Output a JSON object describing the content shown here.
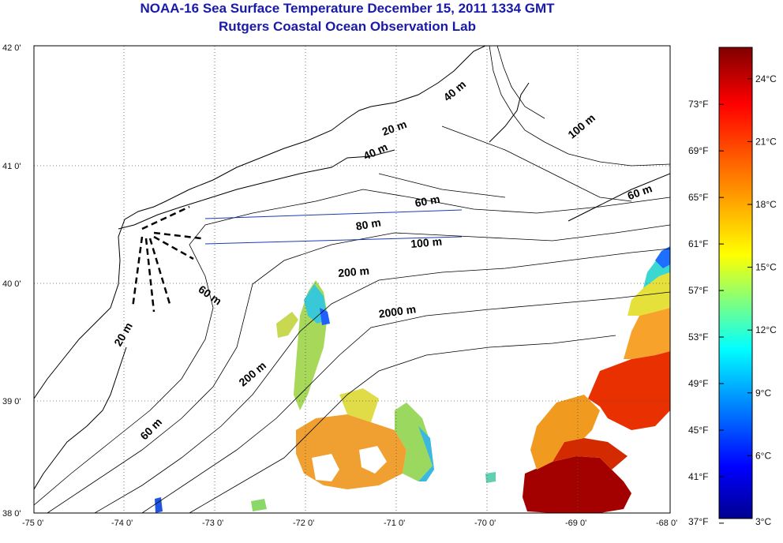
{
  "header": {
    "title": "NOAA-16 Sea Surface Temperature December 15, 2011 1334 GMT",
    "subtitle": "Rutgers Coastal Ocean Observation Lab"
  },
  "map": {
    "lon_range": [
      -75,
      -68
    ],
    "lat_range": [
      38,
      42
    ],
    "lon_ticks": [
      "-75 0'",
      "-74 0'",
      "-73 0'",
      "-72 0'",
      "-71 0'",
      "-70 0'",
      "-69 0'",
      "-68 0'"
    ],
    "lat_ticks": [
      "38 0'",
      "39 0'",
      "40 0'",
      "41 0'",
      "42 0'"
    ],
    "grid": "dotted",
    "land_color": "#ffffff",
    "no_data_color": "#ffffff",
    "coastline_color": "#000000",
    "transect_color": "#1a3cb0",
    "contour_labels": [
      {
        "text": "20 m",
        "lon": -71.15,
        "lat": 41.23
      },
      {
        "text": "40 m",
        "lon": -70.45,
        "lat": 41.52
      },
      {
        "text": "100 m",
        "lon": -69.08,
        "lat": 41.2
      },
      {
        "text": "40 m",
        "lon": -71.35,
        "lat": 41.02
      },
      {
        "text": "60 m",
        "lon": -70.8,
        "lat": 40.62
      },
      {
        "text": "60 m",
        "lon": -68.45,
        "lat": 40.68
      },
      {
        "text": "80 m",
        "lon": -71.45,
        "lat": 40.42
      },
      {
        "text": "100 m",
        "lon": -70.85,
        "lat": 40.27
      },
      {
        "text": "200 m",
        "lon": -71.65,
        "lat": 40.02
      },
      {
        "text": "2000 m",
        "lon": -71.2,
        "lat": 39.67
      },
      {
        "text": "60 m",
        "lon": -73.2,
        "lat": 39.9
      },
      {
        "text": "20 m",
        "lon": -74.05,
        "lat": 39.42
      },
      {
        "text": "200 m",
        "lon": -72.7,
        "lat": 39.08
      },
      {
        "text": "60 m",
        "lon": -73.78,
        "lat": 38.62
      }
    ]
  },
  "colorbar": {
    "range_c": [
      3,
      25.5
    ],
    "celsius_ticks": [
      "24°C",
      "21°C",
      "18°C",
      "15°C",
      "12°C",
      "9°C",
      "6°C",
      "3°C"
    ],
    "fahrenheit_ticks": [
      "73°F",
      "69°F",
      "65°F",
      "61°F",
      "57°F",
      "53°F",
      "49°F",
      "45°F",
      "41°F",
      "37°F"
    ],
    "colormap": [
      "#00008f",
      "#0000ff",
      "#00ffff",
      "#ffff00",
      "#ff7f00",
      "#ff0000",
      "#7f0000"
    ]
  }
}
